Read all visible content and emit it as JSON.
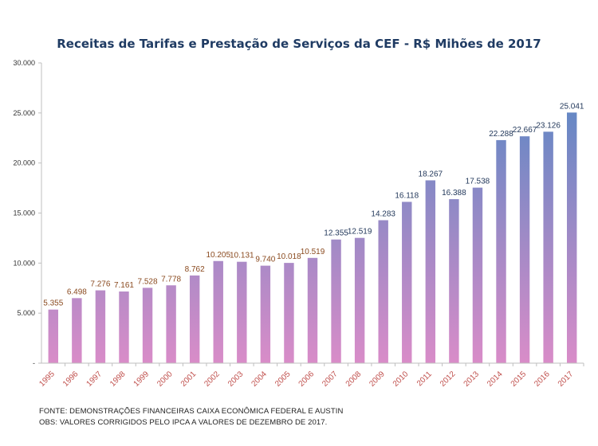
{
  "chart_data": {
    "type": "bar",
    "title": "Receitas de Tarifas e Prestação de Serviços da CEF - R$ Mihões de 2017",
    "xlabel": "",
    "ylabel": "",
    "ylim": [
      0,
      30000
    ],
    "yticks": [
      0,
      5000,
      10000,
      15000,
      20000,
      25000,
      30000
    ],
    "ytick_labels": [
      "-",
      "5.000",
      "10.000",
      "15.000",
      "20.000",
      "25.000",
      "30.000"
    ],
    "grid": false,
    "legend": "none",
    "categories": [
      "1995",
      "1996",
      "1997",
      "1998",
      "1999",
      "2000",
      "2001",
      "2002",
      "2003",
      "2004",
      "2005",
      "2006",
      "2007",
      "2008",
      "2009",
      "2010",
      "2011",
      "2012",
      "2013",
      "2014",
      "2015",
      "2016",
      "2017"
    ],
    "values": [
      5355,
      6498,
      7276,
      7161,
      7528,
      7778,
      8762,
      10205,
      10131,
      9740,
      10018,
      10519,
      12355,
      12519,
      14283,
      16118,
      18267,
      16388,
      17538,
      22288,
      22667,
      23126,
      25041
    ],
    "value_labels": [
      "5.355",
      "6.498",
      "7.276",
      "7.161",
      "7.528",
      "7.778",
      "8.762",
      "10.205",
      "10.131",
      "9.740",
      "10.018",
      "10.519",
      "12.355",
      "12.519",
      "14.283",
      "16.118",
      "18.267",
      "16.388",
      "17.538",
      "22.288",
      "22.667",
      "23.126",
      "25.041"
    ],
    "colors": {
      "bar_gradient_low": "#d98cc8",
      "bar_gradient_high": "#4f87c4",
      "label_low": "#8a4a1f",
      "label_high": "#1f3558",
      "category_label": "#c0504d",
      "title": "#1f3b63"
    }
  },
  "footnotes": {
    "source": "FONTE: DEMONSTRAÇÕES FINANCEIRAS CAIXA ECONÔMICA FEDERAL E AUSTIN",
    "note": "OBS: VALORES CORRIGIDOS PELO IPCA A VALORES DE DEZEMBRO DE 2017."
  }
}
